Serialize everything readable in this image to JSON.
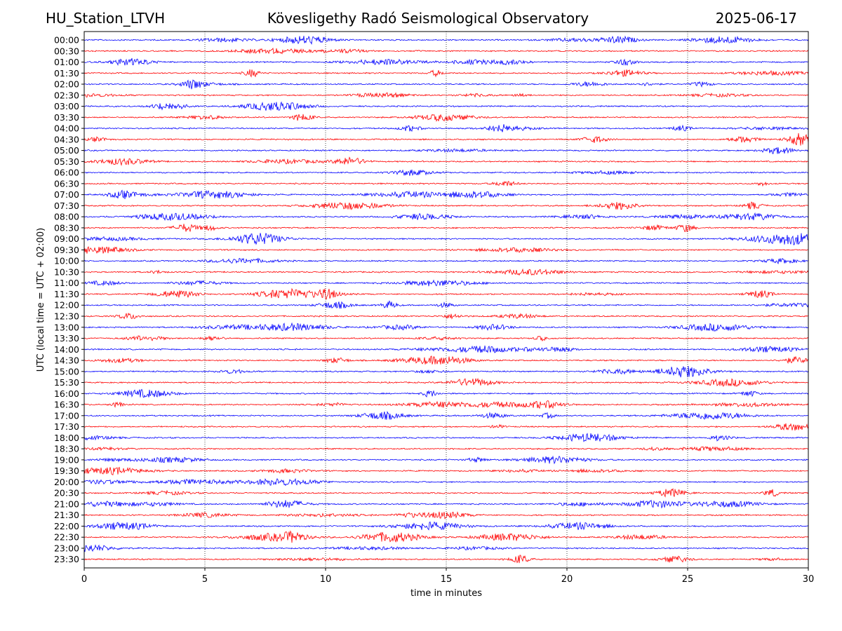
{
  "header": {
    "station": "HU_Station_LTVH",
    "observatory": "Kövesligethy Radó Seismological Observatory",
    "date": "2025-06-17"
  },
  "chart_data": {
    "type": "line",
    "subtype": "helicorder",
    "title": "Kövesligethy Radó Seismological Observatory",
    "xlabel": "time in minutes",
    "ylabel": "UTC (local time = UTC + 02:00)",
    "xlim": [
      0,
      30
    ],
    "x_ticks": [
      "0",
      "5",
      "10",
      "15",
      "20",
      "25",
      "30"
    ],
    "row_interval_minutes": 30,
    "row_labels": [
      "00:00",
      "00:30",
      "01:00",
      "01:30",
      "02:00",
      "02:30",
      "03:00",
      "03:30",
      "04:00",
      "04:30",
      "05:00",
      "05:30",
      "06:00",
      "06:30",
      "07:00",
      "07:30",
      "08:00",
      "08:30",
      "09:00",
      "09:30",
      "10:00",
      "10:30",
      "11:00",
      "11:30",
      "12:00",
      "12:30",
      "13:00",
      "13:30",
      "14:00",
      "14:30",
      "15:00",
      "15:30",
      "16:00",
      "16:30",
      "17:00",
      "17:30",
      "18:00",
      "18:30",
      "19:00",
      "19:30",
      "20:00",
      "20:30",
      "21:00",
      "21:30",
      "22:00",
      "22:30",
      "23:00",
      "23:30"
    ],
    "trace_colors": [
      "#0000ff",
      "#ff0000"
    ],
    "vertical_grid_minutes": [
      5,
      10,
      15,
      20,
      25
    ],
    "grid": "vertical dotted",
    "legend": "none"
  }
}
